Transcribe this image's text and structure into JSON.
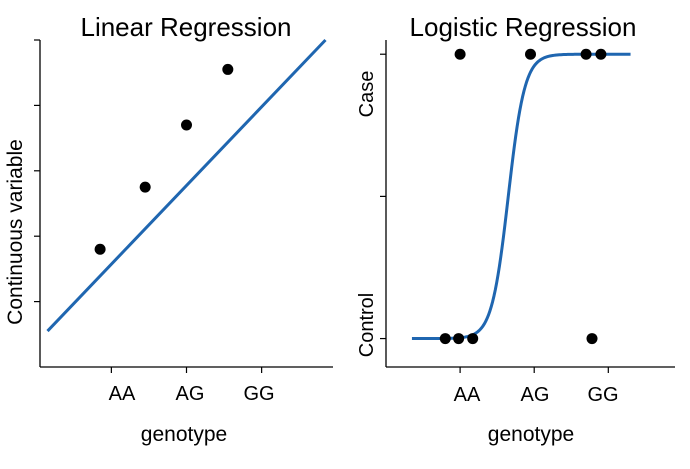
{
  "chart_data": [
    {
      "type": "scatter",
      "title": "Linear Regression",
      "xlabel": "genotype",
      "ylabel": "Continuous variable",
      "categories": [
        "AA",
        "AG",
        "GG"
      ],
      "xlim": [
        -0.95,
        2.95
      ],
      "ylim": [
        0,
        10
      ],
      "series": [
        {
          "kind": "points",
          "x": [
            -0.15,
            0.45,
            1.0,
            1.55
          ],
          "y": [
            3.6,
            5.5,
            7.4,
            9.1
          ]
        },
        {
          "kind": "line",
          "x": [
            -0.85,
            2.85
          ],
          "y": [
            1.1,
            10.0
          ]
        }
      ],
      "grid": false,
      "color": "#1f66b0"
    },
    {
      "type": "scatter",
      "title": "Logistic Regression",
      "xlabel": "genotype",
      "ylabel_ticks": [
        "Control",
        "Case"
      ],
      "categories": [
        "AA",
        "AG",
        "GG"
      ],
      "xlim": [
        -1.0,
        2.9
      ],
      "ylim": [
        -0.1,
        1.05
      ],
      "series": [
        {
          "kind": "points",
          "x": [
            -0.2,
            -0.02,
            0.17,
            0.0,
            0.95,
            1.7,
            1.9,
            1.78
          ],
          "y": [
            0,
            0,
            0,
            1,
            1,
            1,
            1,
            0
          ]
        },
        {
          "kind": "curve",
          "function": "logistic",
          "midpoint": 0.65,
          "steepness": 9,
          "x_range": [
            -0.65,
            2.3
          ]
        }
      ],
      "grid": false,
      "color": "#1f66b0"
    }
  ]
}
